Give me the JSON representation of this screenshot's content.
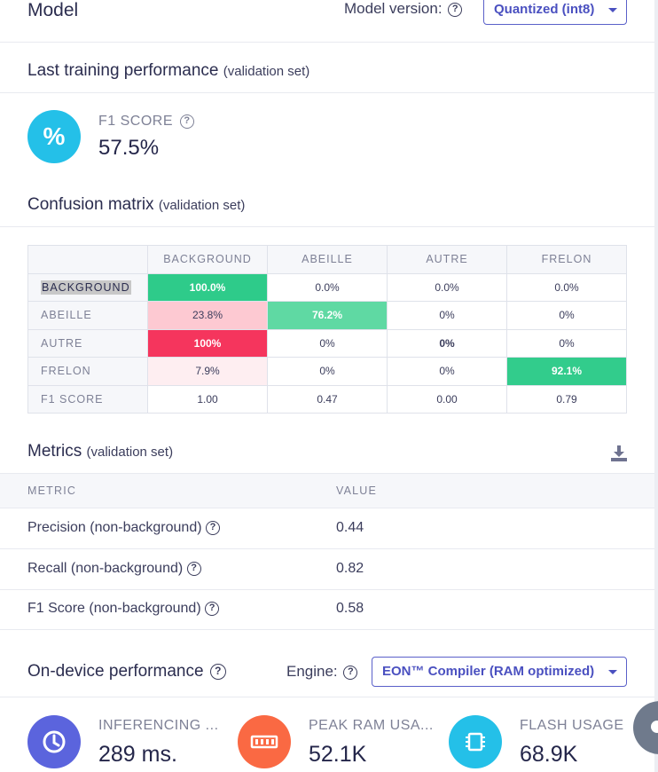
{
  "model": {
    "title": "Model",
    "version_label": "Model version:",
    "version_value": "Quantized (int8)"
  },
  "training": {
    "title": "Last training performance",
    "subtitle": "(validation set)",
    "f1_label": "F1 SCORE",
    "f1_value": "57.5%",
    "f1_icon": "percent-icon",
    "accent": "#24c0e8"
  },
  "confusion": {
    "title": "Confusion matrix",
    "subtitle": "(validation set)",
    "columns": [
      "BACKGROUND",
      "ABEILLE",
      "AUTRE",
      "FRELON"
    ],
    "rows": [
      {
        "label": "BACKGROUND",
        "cells": [
          "100.0%",
          "0.0%",
          "0.0%",
          "0.0%"
        ],
        "colors": [
          "#2ecb8a",
          "",
          "",
          ""
        ]
      },
      {
        "label": "ABEILLE",
        "cells": [
          "23.8%",
          "76.2%",
          "0%",
          "0%"
        ],
        "colors": [
          "#fdc9d2",
          "#5fd9a3",
          "",
          ""
        ]
      },
      {
        "label": "AUTRE",
        "cells": [
          "100%",
          "0%",
          "0%",
          "0%"
        ],
        "colors": [
          "#f5355d",
          "",
          "",
          ""
        ]
      },
      {
        "label": "FRELON",
        "cells": [
          "7.9%",
          "0%",
          "0%",
          "92.1%"
        ],
        "colors": [
          "#feeef1",
          "",
          "",
          "#32cc8c"
        ]
      },
      {
        "label": "F1 SCORE",
        "cells": [
          "1.00",
          "0.47",
          "0.00",
          "0.79"
        ],
        "colors": [
          "",
          "",
          "",
          ""
        ]
      }
    ]
  },
  "metrics": {
    "title": "Metrics",
    "subtitle": "(validation set)",
    "col_metric": "METRIC",
    "col_value": "VALUE",
    "rows": [
      {
        "name": "Precision (non-background)",
        "value": "0.44"
      },
      {
        "name": "Recall (non-background)",
        "value": "0.82"
      },
      {
        "name": "F1 Score (non-background)",
        "value": "0.58"
      }
    ]
  },
  "ondevice": {
    "title": "On-device performance",
    "engine_label": "Engine:",
    "engine_value": "EON™ Compiler (RAM optimized)",
    "stats": [
      {
        "label": "INFERENCING ...",
        "value": "289 ms.",
        "icon": "clock-icon",
        "color": "#5b64dd"
      },
      {
        "label": "PEAK RAM USA...",
        "value": "52.1K",
        "icon": "ram-icon",
        "color": "#fa6943"
      },
      {
        "label": "FLASH USAGE",
        "value": "68.9K",
        "icon": "chip-icon",
        "color": "#24c0e8"
      }
    ]
  }
}
